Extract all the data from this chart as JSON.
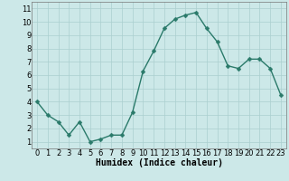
{
  "x": [
    0,
    1,
    2,
    3,
    4,
    5,
    6,
    7,
    8,
    9,
    10,
    11,
    12,
    13,
    14,
    15,
    16,
    17,
    18,
    19,
    20,
    21,
    22,
    23
  ],
  "y": [
    4.0,
    3.0,
    2.5,
    1.5,
    2.5,
    1.0,
    1.2,
    1.5,
    1.5,
    3.2,
    6.3,
    7.8,
    9.5,
    10.2,
    10.5,
    10.7,
    9.5,
    8.5,
    6.7,
    6.5,
    7.2,
    7.2,
    6.5,
    4.5
  ],
  "xlabel": "Humidex (Indice chaleur)",
  "ylim": [
    0.5,
    11.5
  ],
  "xlim": [
    -0.5,
    23.5
  ],
  "yticks": [
    1,
    2,
    3,
    4,
    5,
    6,
    7,
    8,
    9,
    10,
    11
  ],
  "xticks": [
    0,
    1,
    2,
    3,
    4,
    5,
    6,
    7,
    8,
    9,
    10,
    11,
    12,
    13,
    14,
    15,
    16,
    17,
    18,
    19,
    20,
    21,
    22,
    23
  ],
  "line_color": "#2a7a6a",
  "marker_color": "#2a7a6a",
  "bg_color": "#cce8e8",
  "grid_color": "#aacfcf",
  "xlabel_fontsize": 7,
  "tick_fontsize": 6,
  "line_width": 1.0,
  "marker_size": 2.5
}
